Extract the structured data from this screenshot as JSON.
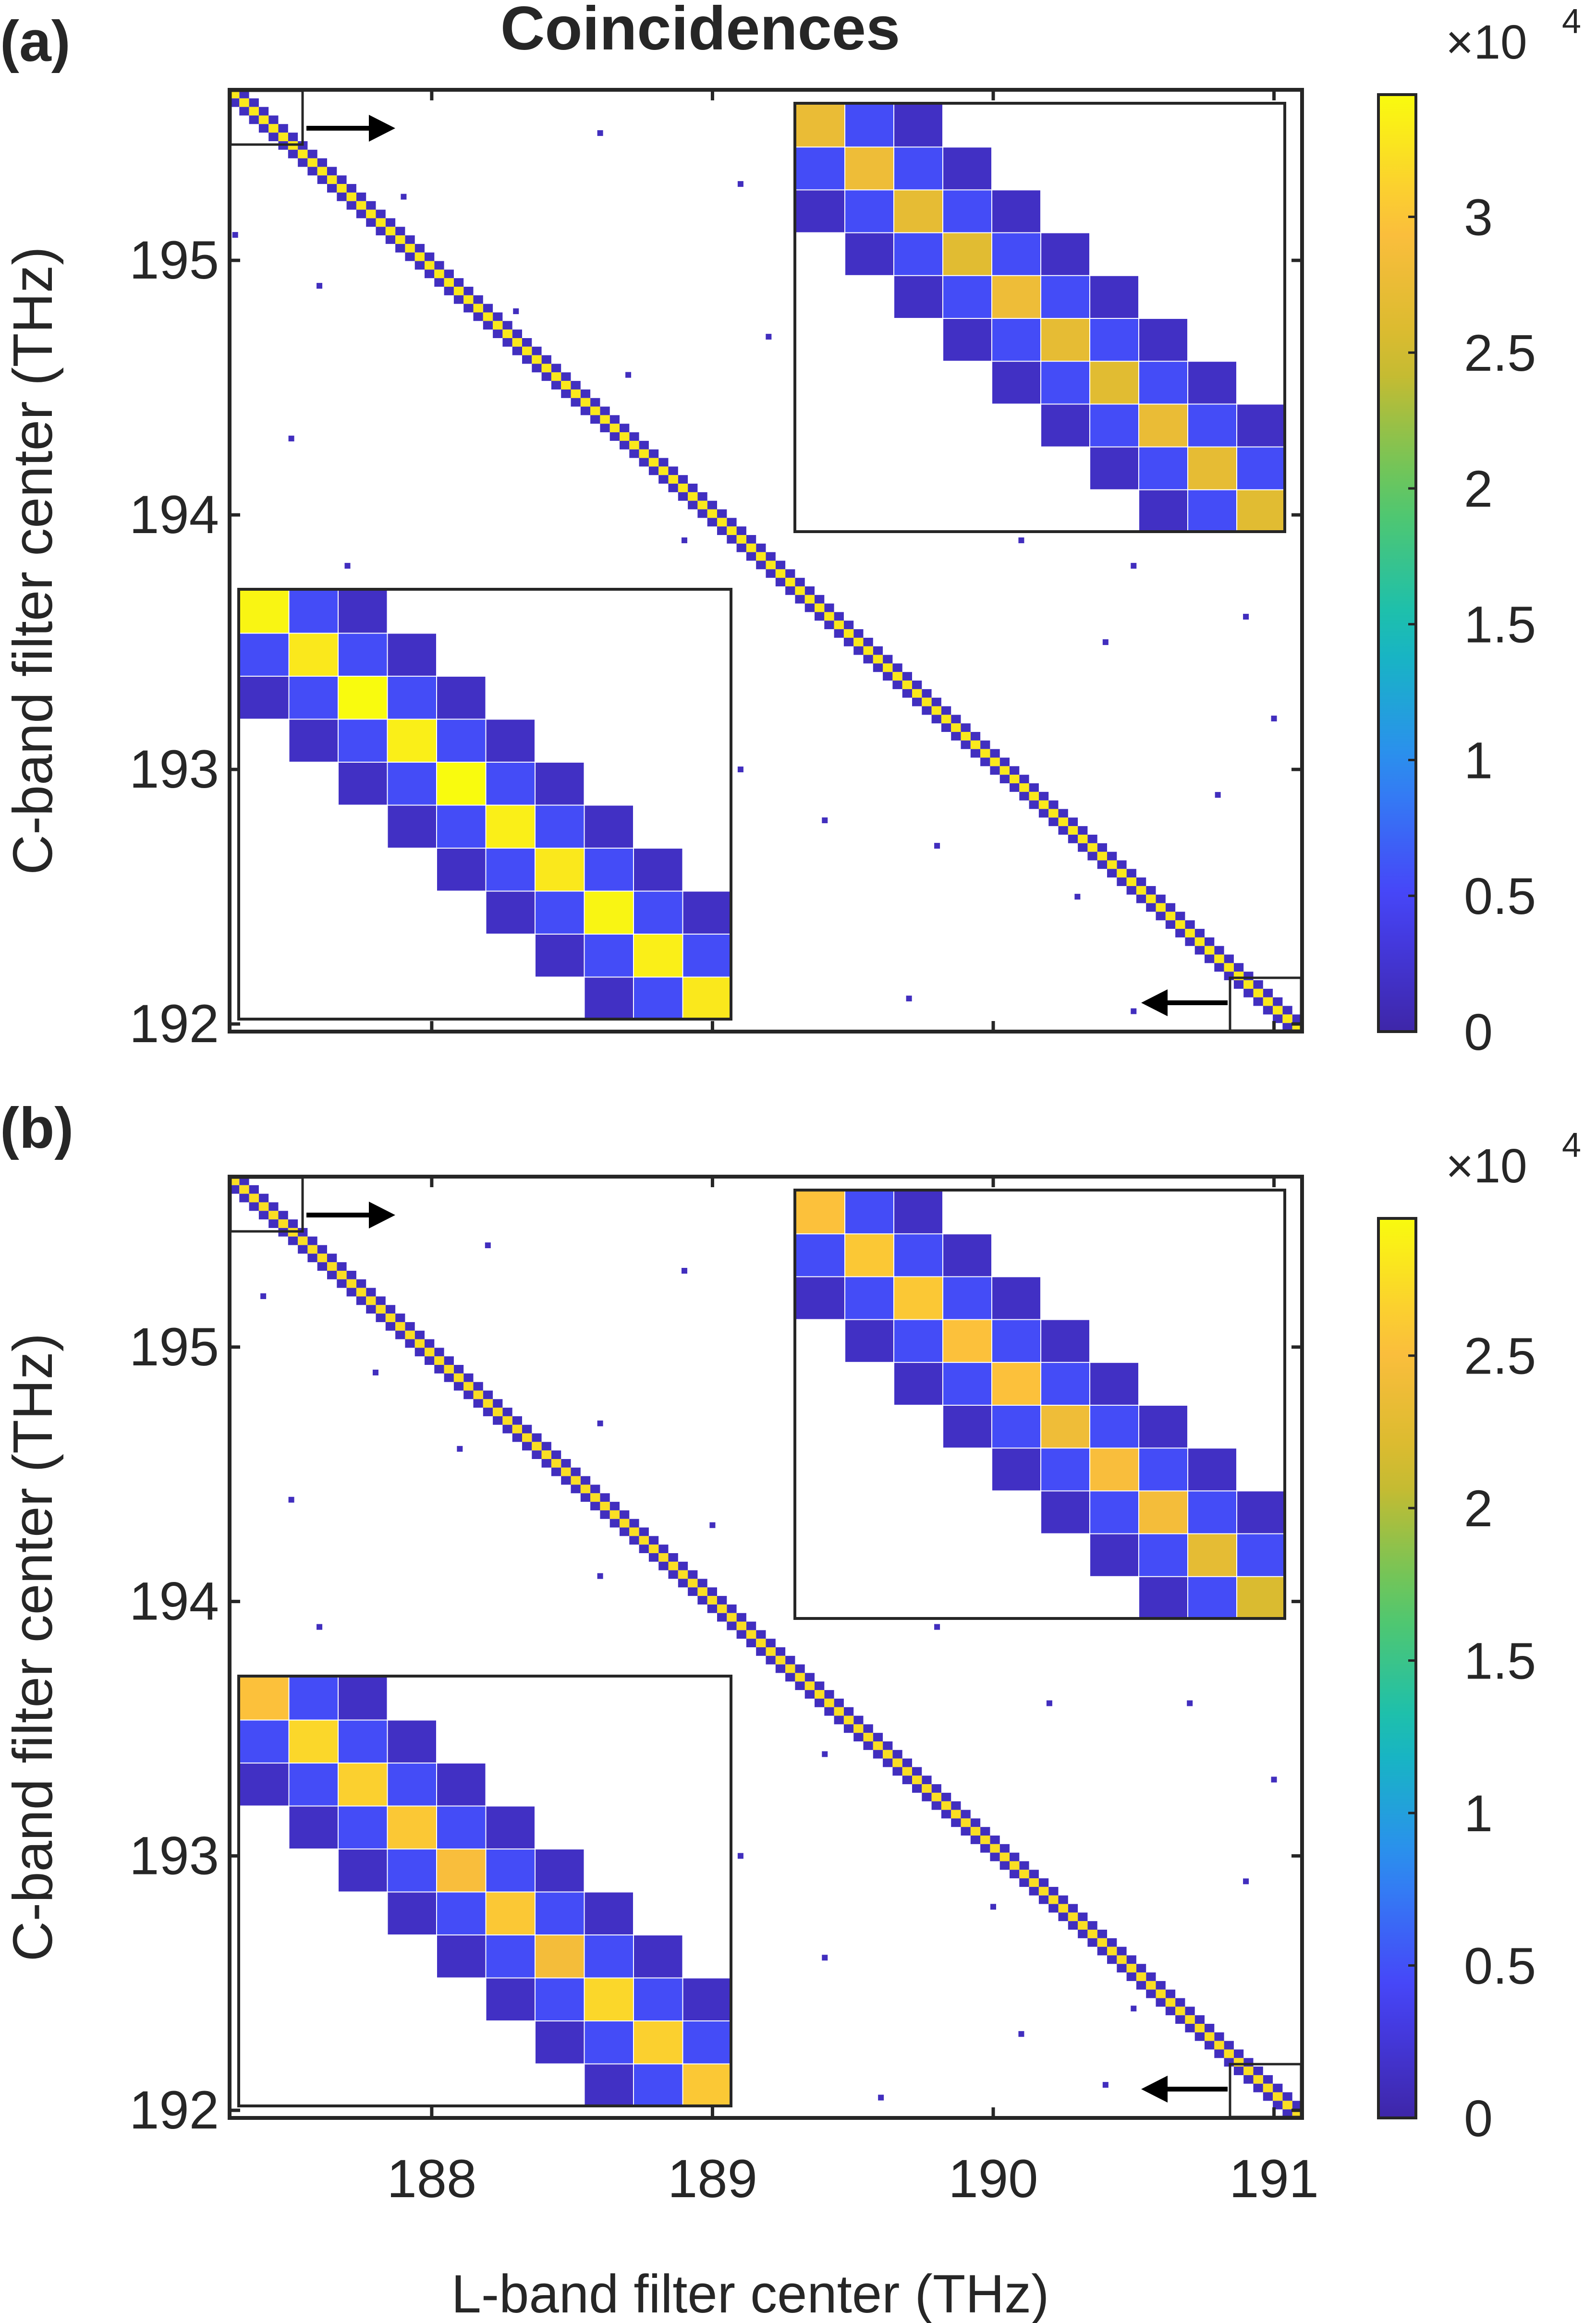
{
  "figure_title": "Coincidences",
  "xlabel": "L-band filter center (THz)",
  "ylabel": "C-band filter center (THz)",
  "colors": {
    "colormap": [
      "#3e26a8",
      "#4743f8",
      "#2d8cf2",
      "#13beb8",
      "#5ac864",
      "#d1ba2c",
      "#fcbe3d",
      "#f9fb0e"
    ],
    "frame": "#262626",
    "arrow": "#000000",
    "background": "#ffffff"
  },
  "chart_data": [
    {
      "type": "heatmap",
      "panel_label": "(a)",
      "title": "Coincidences",
      "xlabel": "",
      "ylabel": "C-band filter center (THz)",
      "xlim": [
        187.28,
        191.1
      ],
      "ylim": [
        191.97,
        195.67
      ],
      "x_ticks": [
        "188",
        "189",
        "190",
        "191"
      ],
      "y_ticks": [
        "192",
        "193",
        "194",
        "195"
      ],
      "colorbar": {
        "ticks": [
          "0",
          "0.5",
          "1",
          "1.5",
          "2",
          "2.5",
          "3"
        ],
        "max": 3.45,
        "exponent_label": "×10",
        "exponent": "4"
      },
      "diagonal": {
        "from": [
          187.28,
          195.67
        ],
        "to": [
          191.1,
          191.97
        ],
        "peak_value": 3.3,
        "sideband_value": 0.15
      },
      "insets": [
        {
          "position": "top-right",
          "peak_values": [
            2.75,
            2.8,
            2.7,
            2.65,
            2.8,
            2.7,
            2.65,
            2.75,
            2.7,
            2.65
          ]
        },
        {
          "position": "bottom-left",
          "peak_values": [
            3.4,
            3.3,
            3.45,
            3.35,
            3.45,
            3.35,
            3.3,
            3.4,
            3.35,
            3.3
          ]
        }
      ],
      "scatter_points": [
        [
          187.3,
          195.1
        ],
        [
          187.6,
          194.9
        ],
        [
          187.9,
          195.25
        ],
        [
          188.6,
          195.5
        ],
        [
          189.1,
          195.3
        ],
        [
          188.3,
          194.8
        ],
        [
          188.7,
          194.55
        ],
        [
          187.5,
          194.3
        ],
        [
          189.2,
          194.7
        ],
        [
          189.5,
          195.25
        ],
        [
          189.9,
          194.6
        ],
        [
          190.2,
          194.9
        ],
        [
          190.6,
          195.0
        ],
        [
          187.7,
          193.8
        ],
        [
          188.9,
          193.9
        ],
        [
          190.1,
          193.9
        ],
        [
          190.4,
          193.5
        ],
        [
          190.9,
          193.6
        ],
        [
          189.6,
          193.4
        ],
        [
          189.1,
          193.0
        ],
        [
          189.8,
          192.7
        ],
        [
          190.3,
          192.5
        ],
        [
          188.9,
          192.3
        ],
        [
          189.7,
          192.1
        ],
        [
          190.5,
          192.05
        ],
        [
          187.4,
          192.5
        ],
        [
          188.1,
          192.25
        ],
        [
          190.8,
          192.9
        ],
        [
          191.0,
          193.2
        ],
        [
          187.4,
          193.1
        ],
        [
          188.5,
          193.7
        ],
        [
          189.4,
          192.8
        ],
        [
          190.7,
          194.2
        ],
        [
          189.3,
          195.45
        ],
        [
          190.5,
          193.8
        ]
      ]
    },
    {
      "type": "heatmap",
      "panel_label": "(b)",
      "title": "",
      "xlabel": "L-band filter center (THz)",
      "ylabel": "C-band filter center (THz)",
      "xlim": [
        187.28,
        191.1
      ],
      "ylim": [
        191.97,
        195.67
      ],
      "x_ticks": [
        "188",
        "189",
        "190",
        "191"
      ],
      "y_ticks": [
        "192",
        "193",
        "194",
        "195"
      ],
      "colorbar": {
        "ticks": [
          "0",
          "0.5",
          "1",
          "1.5",
          "2",
          "2.5"
        ],
        "max": 2.95,
        "exponent_label": "×10",
        "exponent": "4"
      },
      "diagonal": {
        "from": [
          187.28,
          195.67
        ],
        "to": [
          191.1,
          191.97
        ],
        "peak_value": 2.75,
        "sideband_value": 0.12
      },
      "insets": [
        {
          "position": "top-right",
          "peak_values": [
            2.55,
            2.6,
            2.6,
            2.55,
            2.55,
            2.4,
            2.5,
            2.45,
            2.3,
            2.2
          ]
        },
        {
          "position": "bottom-left",
          "peak_values": [
            2.55,
            2.7,
            2.65,
            2.6,
            2.5,
            2.6,
            2.45,
            2.7,
            2.65,
            2.6
          ]
        }
      ],
      "scatter_points": [
        [
          187.4,
          195.2
        ],
        [
          187.8,
          194.9
        ],
        [
          188.2,
          195.4
        ],
        [
          188.9,
          195.3
        ],
        [
          189.3,
          195.0
        ],
        [
          188.6,
          194.7
        ],
        [
          187.5,
          194.4
        ],
        [
          188.1,
          194.6
        ],
        [
          189.0,
          194.3
        ],
        [
          189.5,
          195.2
        ],
        [
          190.0,
          194.5
        ],
        [
          190.3,
          195.1
        ],
        [
          187.6,
          193.9
        ],
        [
          189.0,
          193.7
        ],
        [
          189.8,
          193.9
        ],
        [
          190.2,
          193.6
        ],
        [
          190.7,
          193.6
        ],
        [
          189.4,
          193.4
        ],
        [
          189.1,
          193.0
        ],
        [
          190.0,
          192.8
        ],
        [
          190.5,
          192.4
        ],
        [
          188.7,
          192.2
        ],
        [
          189.6,
          192.05
        ],
        [
          190.4,
          192.1
        ],
        [
          187.5,
          192.6
        ],
        [
          188.3,
          192.2
        ],
        [
          190.9,
          192.9
        ],
        [
          191.0,
          193.3
        ],
        [
          187.4,
          193.2
        ],
        [
          188.6,
          194.1
        ],
        [
          189.4,
          192.6
        ],
        [
          190.6,
          194.3
        ],
        [
          189.6,
          195.4
        ],
        [
          190.1,
          192.3
        ]
      ]
    }
  ]
}
